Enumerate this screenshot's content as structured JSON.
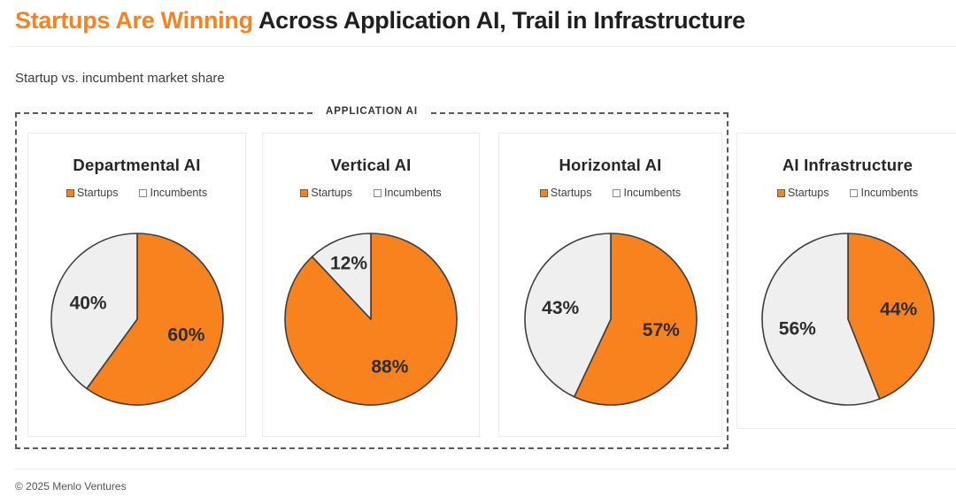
{
  "header": {
    "title_highlight": "Startups Are Winning",
    "title_rest": "Across Application AI, Trail in Infrastructure",
    "subtitle": "Startup vs. incumbent market share"
  },
  "application_group_label": "APPLICATION AI",
  "legend": {
    "startups_label": "Startups",
    "incumbents_label": "Incumbents"
  },
  "colors": {
    "accent_orange": "#F7821E",
    "incumbent_fill": "#EFEFEF",
    "slice_stroke": "#3D3D3D",
    "label_dark": "#2D2D2D"
  },
  "footer": {
    "copyright": "© 2025 Menlo Ventures"
  },
  "chart_data": [
    {
      "type": "pie",
      "title": "Departmental AI",
      "in_application_ai_box": true,
      "legend": [
        "Startups",
        "Incumbents"
      ],
      "slices": [
        {
          "label": "Startups",
          "value": 60,
          "display": "60%"
        },
        {
          "label": "Incumbents",
          "value": 40,
          "display": "40%"
        }
      ]
    },
    {
      "type": "pie",
      "title": "Vertical AI",
      "in_application_ai_box": true,
      "legend": [
        "Startups",
        "Incumbents"
      ],
      "slices": [
        {
          "label": "Startups",
          "value": 88,
          "display": "88%"
        },
        {
          "label": "Incumbents",
          "value": 12,
          "display": "12%"
        }
      ]
    },
    {
      "type": "pie",
      "title": "Horizontal AI",
      "in_application_ai_box": true,
      "legend": [
        "Startups",
        "Incumbents"
      ],
      "slices": [
        {
          "label": "Startups",
          "value": 57,
          "display": "57%"
        },
        {
          "label": "Incumbents",
          "value": 43,
          "display": "43%"
        }
      ]
    },
    {
      "type": "pie",
      "title": "AI Infrastructure",
      "in_application_ai_box": false,
      "legend": [
        "Startups",
        "Incumbents"
      ],
      "slices": [
        {
          "label": "Startups",
          "value": 44,
          "display": "44%"
        },
        {
          "label": "Incumbents",
          "value": 56,
          "display": "56%"
        }
      ]
    }
  ]
}
